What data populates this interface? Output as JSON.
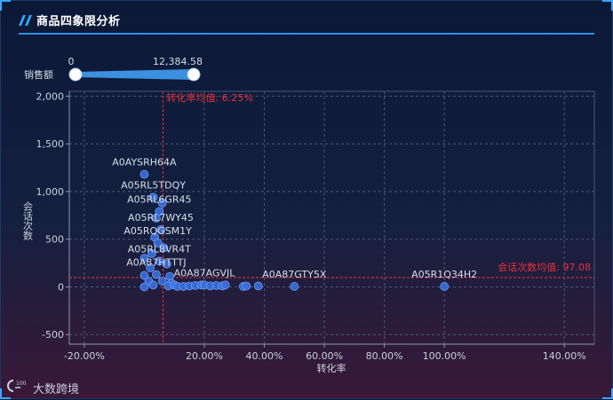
{
  "window": {
    "title": "商品四象限分析"
  },
  "brand": {
    "name": "大数跨境"
  },
  "filter": {
    "label": "销售额",
    "min_label": "0",
    "max_label": "12,384.58",
    "min_value": 0,
    "max_value": 12384.58
  },
  "chart_data": {
    "type": "scatter",
    "title": "",
    "xlabel": "转化率",
    "ylabel": "会话次数",
    "xlim": [
      -0.25,
      1.5
    ],
    "ylim": [
      -600,
      2050
    ],
    "x_ticks": [
      -0.2,
      0.2,
      0.4,
      0.6,
      0.8,
      1.0,
      1.4
    ],
    "x_tick_labels": [
      "-20.00%",
      "20.00%",
      "40.00%",
      "60.00%",
      "80.00%",
      "100.00%",
      "140.00%"
    ],
    "y_ticks": [
      -500,
      0,
      500,
      1000,
      1500,
      2000
    ],
    "y_tick_labels": [
      "-500",
      "0",
      "500",
      "1,000",
      "1,500",
      "2,000"
    ],
    "grid": true,
    "mean_lines": {
      "x": {
        "value": 0.0625,
        "label": "转化率均值: 6.25%"
      },
      "y": {
        "value": 97.08,
        "label": "会话次数均值: 97.08"
      }
    },
    "colors": {
      "point": "#3a6fd8",
      "point_stroke": "#6b9bff",
      "mean_line": "#e8323c",
      "grid": "#4a5878",
      "text": "#c9d1de"
    },
    "labeled_points": [
      {
        "name": "A0AYSRH64A",
        "x": 0.0,
        "y": 1180
      },
      {
        "name": "A05RL5TDQY",
        "x": 0.03,
        "y": 940
      },
      {
        "name": "A05RL6GR45",
        "x": 0.05,
        "y": 790
      },
      {
        "name": "A05RL7WY45",
        "x": 0.055,
        "y": 600
      },
      {
        "name": "A05RQGSM1Y",
        "x": 0.045,
        "y": 460
      },
      {
        "name": "A05RL8VR4T",
        "x": 0.05,
        "y": 270
      },
      {
        "name": "A0A87HTTTJ",
        "x": 0.04,
        "y": 130
      },
      {
        "name": "A0A87AGVJL",
        "x": 0.2,
        "y": 20
      },
      {
        "name": "A0A87GTY5X",
        "x": 0.5,
        "y": 5
      },
      {
        "name": "A05R1Q34H2",
        "x": 1.0,
        "y": 5
      }
    ],
    "points": [
      {
        "x": 0.0,
        "y": 1180
      },
      {
        "x": 0.03,
        "y": 940
      },
      {
        "x": 0.06,
        "y": 880
      },
      {
        "x": 0.05,
        "y": 790
      },
      {
        "x": 0.04,
        "y": 720
      },
      {
        "x": 0.055,
        "y": 600
      },
      {
        "x": 0.035,
        "y": 520
      },
      {
        "x": 0.045,
        "y": 460
      },
      {
        "x": 0.065,
        "y": 410
      },
      {
        "x": 0.025,
        "y": 350
      },
      {
        "x": 0.0,
        "y": 300
      },
      {
        "x": 0.05,
        "y": 270
      },
      {
        "x": 0.075,
        "y": 240
      },
      {
        "x": 0.02,
        "y": 200
      },
      {
        "x": 0.04,
        "y": 130
      },
      {
        "x": 0.085,
        "y": 110
      },
      {
        "x": 0.0,
        "y": 120
      },
      {
        "x": 0.015,
        "y": 60
      },
      {
        "x": 0.06,
        "y": 60
      },
      {
        "x": 0.09,
        "y": 40
      },
      {
        "x": 0.0,
        "y": 0
      },
      {
        "x": 0.03,
        "y": 20
      },
      {
        "x": 0.08,
        "y": 10
      },
      {
        "x": 0.1,
        "y": 20
      },
      {
        "x": 0.11,
        "y": 5
      },
      {
        "x": 0.13,
        "y": 5
      },
      {
        "x": 0.15,
        "y": 10
      },
      {
        "x": 0.17,
        "y": 15
      },
      {
        "x": 0.19,
        "y": 20
      },
      {
        "x": 0.2,
        "y": 20
      },
      {
        "x": 0.22,
        "y": 10
      },
      {
        "x": 0.24,
        "y": 15
      },
      {
        "x": 0.26,
        "y": 10
      },
      {
        "x": 0.27,
        "y": 20
      },
      {
        "x": 0.33,
        "y": 5
      },
      {
        "x": 0.34,
        "y": 10
      },
      {
        "x": 0.38,
        "y": 10
      },
      {
        "x": 0.5,
        "y": 5
      },
      {
        "x": 1.0,
        "y": 5
      }
    ]
  }
}
